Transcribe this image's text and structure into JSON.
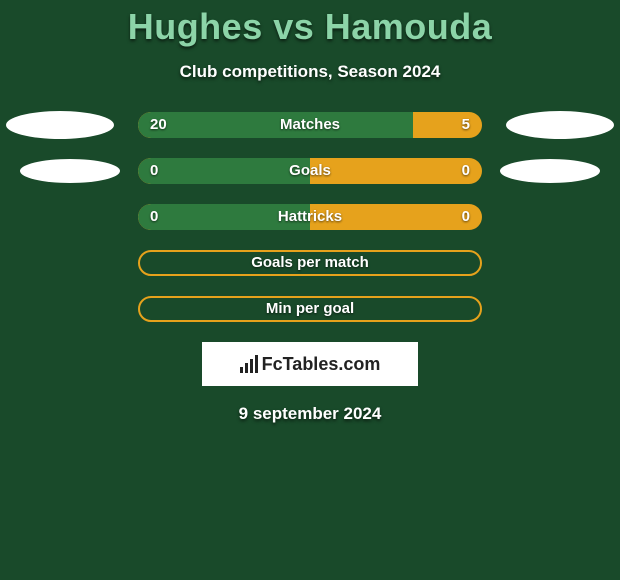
{
  "background_color": "#194a2a",
  "title": "Hughes vs Hamouda",
  "title_color": "#8cd4a8",
  "title_fontsize": 36,
  "subtitle": "Club competitions, Season 2024",
  "subtitle_color": "#ffffff",
  "bar_left_color": "#2e7a3e",
  "bar_right_color": "#e6a21c",
  "rows": [
    {
      "label": "Matches",
      "left": "20",
      "right": "5",
      "left_pct": 80,
      "left_ellipse": "lg",
      "right_ellipse": "lg"
    },
    {
      "label": "Goals",
      "left": "0",
      "right": "0",
      "left_pct": 50,
      "left_ellipse": "sm",
      "right_ellipse": "sm"
    },
    {
      "label": "Hattricks",
      "left": "0",
      "right": "0",
      "left_pct": 50,
      "left_ellipse": null,
      "right_ellipse": null
    },
    {
      "label": "Goals per match",
      "left": "",
      "right": "",
      "left_pct": 0,
      "outline": true
    },
    {
      "label": "Min per goal",
      "left": "",
      "right": "",
      "left_pct": 0,
      "outline": true
    }
  ],
  "attribution": "FcTables.com",
  "date": "9 september 2024"
}
